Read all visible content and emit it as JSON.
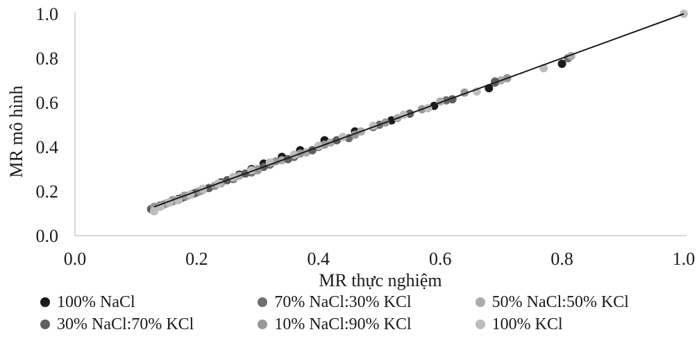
{
  "chart_data": {
    "type": "scatter",
    "title": "",
    "xlabel": "MR thực nghiệm",
    "ylabel": "MR mô hình",
    "xlim": [
      0,
      1
    ],
    "ylim": [
      0,
      1
    ],
    "xticks": [
      "0.0",
      "0.2",
      "0.4",
      "0.6",
      "0.8",
      "1.0"
    ],
    "yticks": [
      "0.0",
      "0.2",
      "0.4",
      "0.6",
      "0.8",
      "1.0"
    ],
    "grid": false,
    "legend": "bottom",
    "fit_line": {
      "x": [
        0.13,
        1.0
      ],
      "y": [
        0.13,
        1.0
      ],
      "color": "#1a1a1a"
    },
    "series": [
      {
        "name": "100% NaCl",
        "color": "#1a1a1a",
        "x": [
          0.13,
          0.14,
          0.15,
          0.17,
          0.19,
          0.21,
          0.24,
          0.27,
          0.29,
          0.31,
          0.34,
          0.37,
          0.41,
          0.46,
          0.52,
          0.59,
          0.68,
          0.8
        ],
        "y": [
          0.12,
          0.135,
          0.145,
          0.165,
          0.185,
          0.21,
          0.24,
          0.275,
          0.3,
          0.325,
          0.355,
          0.385,
          0.43,
          0.47,
          0.52,
          0.585,
          0.665,
          0.775
        ]
      },
      {
        "name": "70% NaCl:30% KCl",
        "color": "#6e6e6e",
        "x": [
          0.13,
          0.145,
          0.16,
          0.18,
          0.2,
          0.23,
          0.26,
          0.29,
          0.32,
          0.36,
          0.4,
          0.45,
          0.5,
          0.55,
          0.61,
          0.69,
          0.81
        ],
        "y": [
          0.125,
          0.14,
          0.155,
          0.175,
          0.195,
          0.225,
          0.255,
          0.285,
          0.32,
          0.355,
          0.4,
          0.44,
          0.5,
          0.55,
          0.61,
          0.69,
          0.8
        ]
      },
      {
        "name": "50% NaCl:50% KCl",
        "color": "#ababab",
        "x": [
          0.135,
          0.15,
          0.165,
          0.185,
          0.21,
          0.24,
          0.27,
          0.3,
          0.34,
          0.38,
          0.42,
          0.47,
          0.53,
          0.6,
          0.7,
          0.815
        ],
        "y": [
          0.13,
          0.145,
          0.16,
          0.18,
          0.205,
          0.235,
          0.27,
          0.3,
          0.34,
          0.375,
          0.42,
          0.47,
          0.53,
          0.605,
          0.7,
          0.81
        ]
      },
      {
        "name": "30% NaCl:70% KCl",
        "color": "#5f5f5f",
        "x": [
          0.125,
          0.14,
          0.155,
          0.175,
          0.195,
          0.22,
          0.25,
          0.28,
          0.31,
          0.35,
          0.39,
          0.43,
          0.49,
          0.55,
          0.62,
          0.69
        ],
        "y": [
          0.12,
          0.135,
          0.15,
          0.17,
          0.19,
          0.215,
          0.25,
          0.28,
          0.31,
          0.345,
          0.385,
          0.43,
          0.49,
          0.55,
          0.615,
          0.695
        ]
      },
      {
        "name": "10% NaCl:90% KCl",
        "color": "#989898",
        "x": [
          0.13,
          0.145,
          0.16,
          0.18,
          0.205,
          0.23,
          0.26,
          0.3,
          0.33,
          0.37,
          0.41,
          0.46,
          0.51,
          0.57,
          0.64,
          0.71
        ],
        "y": [
          0.13,
          0.14,
          0.16,
          0.18,
          0.2,
          0.225,
          0.26,
          0.295,
          0.335,
          0.37,
          0.41,
          0.455,
          0.51,
          0.57,
          0.645,
          0.71
        ]
      },
      {
        "name": "100% KCl",
        "color": "#bdbdbd",
        "x": [
          0.13,
          0.14,
          0.155,
          0.17,
          0.19,
          0.21,
          0.235,
          0.26,
          0.29,
          0.32,
          0.36,
          0.4,
          0.44,
          0.49,
          0.54,
          0.58,
          0.66,
          0.77,
          1.0
        ],
        "y": [
          0.11,
          0.13,
          0.15,
          0.16,
          0.185,
          0.21,
          0.235,
          0.265,
          0.295,
          0.33,
          0.365,
          0.405,
          0.445,
          0.495,
          0.545,
          0.575,
          0.65,
          0.755,
          1.0
        ]
      }
    ]
  }
}
